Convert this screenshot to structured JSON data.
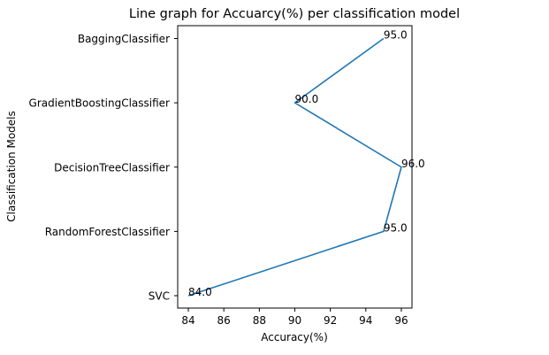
{
  "chart_data": {
    "type": "line",
    "title": "Line graph for Accuarcy(%) per classification model",
    "xlabel": "Accuracy(%)",
    "ylabel": "Classification Models",
    "categories": [
      "SVC",
      "RandomForestClassifier",
      "DecisionTreeClassifier",
      "GradientBoostingClassifier",
      "BaggingClassifier"
    ],
    "values": [
      84.0,
      95.0,
      96.0,
      90.0,
      95.0
    ],
    "data_labels": [
      "84.0",
      "95.0",
      "96.0",
      "90.0",
      "95.0"
    ],
    "x_ticks": [
      84,
      86,
      88,
      90,
      92,
      94,
      96
    ],
    "xlim": [
      83.4,
      96.6
    ],
    "orientation": "horizontal-values",
    "grid": false,
    "line_color": "#1f77b4"
  }
}
